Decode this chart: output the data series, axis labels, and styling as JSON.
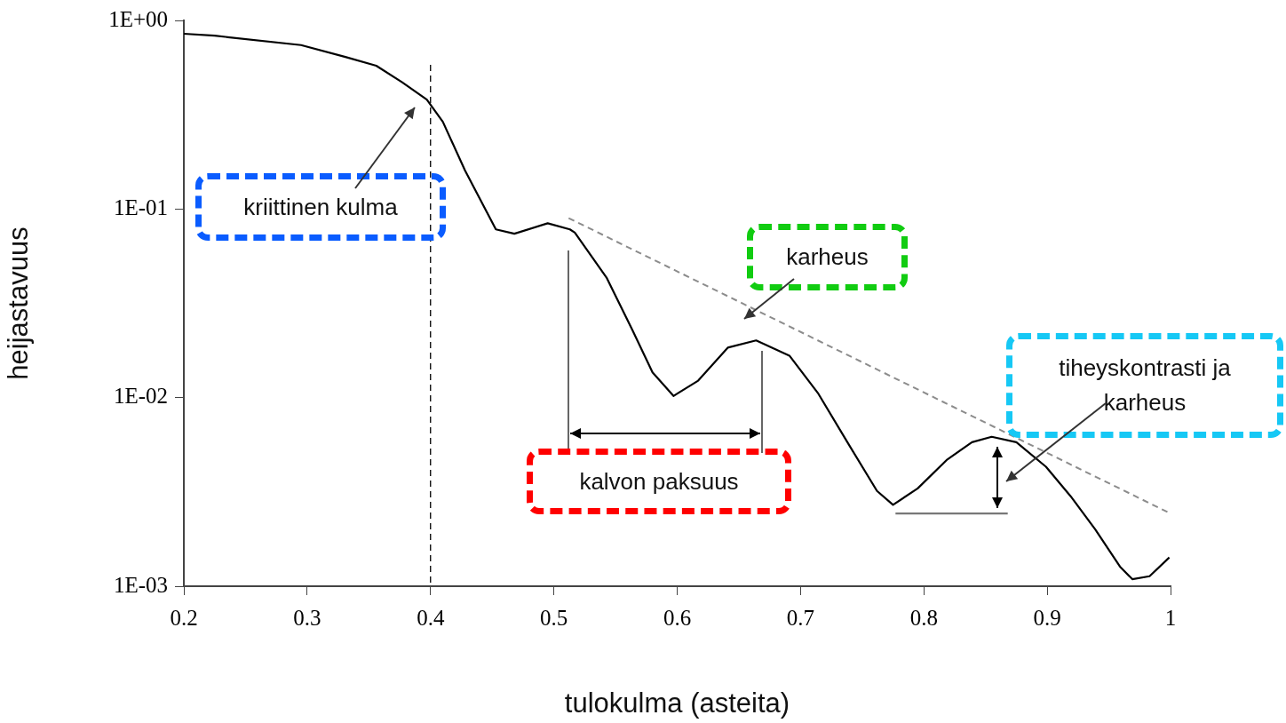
{
  "chart_data": {
    "type": "line",
    "xlabel": "tulokulma (asteita)",
    "ylabel": "heijastavuus",
    "log": "y",
    "grid": false,
    "legend": false,
    "marker": "none",
    "xlim": [
      0.2,
      1
    ],
    "xticks": [
      0.2,
      0.3,
      0.4,
      0.5,
      0.6,
      0.7,
      0.8,
      0.9,
      1
    ],
    "ylim": [
      0.001,
      1
    ],
    "yticks": [
      {
        "value": 1,
        "label": "1E+00"
      },
      {
        "value": 0.1,
        "label": "1E-01"
      },
      {
        "value": 0.01,
        "label": "1E-02"
      },
      {
        "value": 0.001,
        "label": "1E-03"
      }
    ],
    "series": [
      {
        "color": "#000000",
        "line_style": "solid",
        "x": [
          0.2,
          0.225,
          0.295,
          0.331,
          0.356,
          0.377,
          0.397,
          0.41,
          0.428,
          0.453,
          0.468,
          0.495,
          0.513,
          0.517,
          0.543,
          0.564,
          0.58,
          0.597,
          0.617,
          0.641,
          0.664,
          0.691,
          0.714,
          0.738,
          0.762,
          0.775,
          0.795,
          0.819,
          0.839,
          0.855,
          0.875,
          0.899,
          0.919,
          0.939,
          0.959,
          0.969,
          0.983,
          0.999
        ],
        "values": [
          0.85,
          0.83,
          0.74,
          0.64,
          0.575,
          0.47,
          0.38,
          0.29,
          0.16,
          0.078,
          0.074,
          0.084,
          0.078,
          0.075,
          0.043,
          0.0226,
          0.0136,
          0.0102,
          0.0123,
          0.0184,
          0.0201,
          0.0167,
          0.0106,
          0.0058,
          0.0032,
          0.0027,
          0.0033,
          0.0047,
          0.0058,
          0.0062,
          0.0058,
          0.0043,
          0.003,
          0.002,
          0.00127,
          0.00109,
          0.00113,
          0.00142
        ]
      },
      {
        "type": "line",
        "color": "#8c8c8c",
        "line_style": "dashed",
        "x": [
          0.512,
          1
        ],
        "values": [
          0.0895,
          0.00243
        ]
      },
      {
        "type": "line",
        "color": "#777777",
        "line_style": "solid",
        "x": [
          0.777,
          0.868
        ],
        "values": [
          0.00243,
          0.00243
        ]
      }
    ],
    "ref_lines": [
      {
        "axis": "x",
        "value": 0.4,
        "color": "#000000",
        "line_style": "dashed"
      }
    ],
    "annotations": [
      "kriittinen kulma",
      "karheus",
      "tiheyskontrasti ja karheus",
      "kalvon paksuus"
    ]
  }
}
